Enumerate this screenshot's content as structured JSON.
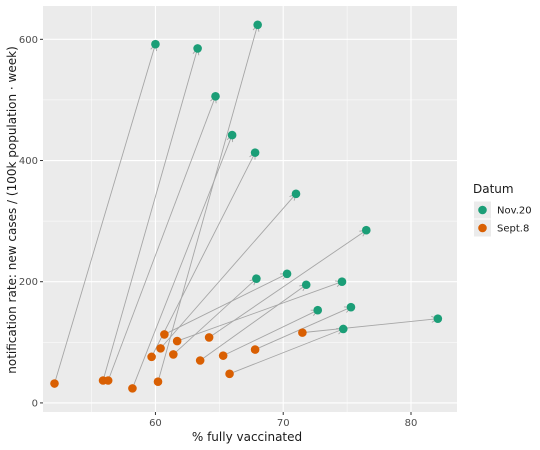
{
  "chart_data": {
    "type": "scatter",
    "xlabel": "% fully vaccinated",
    "ylabel": "notification rate: new cases / (100k population · week)",
    "xlim": [
      51.2,
      83.6
    ],
    "ylim": [
      -15,
      655
    ],
    "x_ticks": [
      60,
      70,
      80
    ],
    "x_minor": [
      55,
      65,
      75
    ],
    "y_ticks": [
      0,
      200,
      400,
      600
    ],
    "y_minor": [
      100,
      300,
      500
    ],
    "legend": {
      "title": "Datum",
      "placement": "right",
      "entries": [
        {
          "label": "Nov.20",
          "color": "#1b9e77"
        },
        {
          "label": "Sept.8",
          "color": "#d95f02"
        }
      ]
    },
    "series": [
      {
        "name": "Sept.8",
        "color": "#d95f02",
        "points": [
          [
            52.1,
            32
          ],
          [
            55.9,
            37
          ],
          [
            56.3,
            37
          ],
          [
            58.2,
            24
          ],
          [
            59.7,
            76
          ],
          [
            60.2,
            35
          ],
          [
            60.4,
            90
          ],
          [
            60.7,
            113
          ],
          [
            61.4,
            80
          ],
          [
            61.7,
            102
          ],
          [
            63.5,
            70
          ],
          [
            64.2,
            108
          ],
          [
            65.3,
            78
          ],
          [
            65.8,
            48
          ],
          [
            67.8,
            88
          ],
          [
            71.5,
            116
          ]
        ]
      },
      {
        "name": "Nov.20",
        "color": "#1b9e77",
        "points": [
          [
            60.0,
            592
          ],
          [
            63.3,
            585
          ],
          [
            64.7,
            506
          ],
          [
            66.0,
            442
          ],
          [
            67.8,
            413
          ],
          [
            68.0,
            624
          ],
          [
            71.0,
            345
          ],
          [
            76.5,
            285
          ],
          [
            67.9,
            205
          ],
          [
            70.3,
            213
          ],
          [
            71.8,
            195
          ],
          [
            74.6,
            200
          ],
          [
            72.7,
            153
          ],
          [
            75.3,
            158
          ],
          [
            74.7,
            122
          ],
          [
            82.1,
            139
          ]
        ]
      }
    ],
    "arrows": [
      {
        "from": [
          52.1,
          32
        ],
        "to": [
          60.0,
          592
        ]
      },
      {
        "from": [
          55.9,
          37
        ],
        "to": [
          63.3,
          585
        ]
      },
      {
        "from": [
          56.3,
          37
        ],
        "to": [
          64.7,
          506
        ]
      },
      {
        "from": [
          58.2,
          24
        ],
        "to": [
          66.0,
          442
        ]
      },
      {
        "from": [
          59.7,
          76
        ],
        "to": [
          67.8,
          413
        ]
      },
      {
        "from": [
          60.2,
          35
        ],
        "to": [
          68.0,
          624
        ]
      },
      {
        "from": [
          60.4,
          90
        ],
        "to": [
          71.0,
          345
        ]
      },
      {
        "from": [
          60.7,
          113
        ],
        "to": [
          70.3,
          213
        ]
      },
      {
        "from": [
          61.4,
          80
        ],
        "to": [
          67.9,
          205
        ]
      },
      {
        "from": [
          61.7,
          102
        ],
        "to": [
          74.6,
          200
        ]
      },
      {
        "from": [
          63.5,
          70
        ],
        "to": [
          71.8,
          195
        ]
      },
      {
        "from": [
          64.2,
          108
        ],
        "to": [
          76.5,
          285
        ]
      },
      {
        "from": [
          65.3,
          78
        ],
        "to": [
          72.7,
          153
        ]
      },
      {
        "from": [
          65.8,
          48
        ],
        "to": [
          74.7,
          122
        ]
      },
      {
        "from": [
          67.8,
          88
        ],
        "to": [
          75.3,
          158
        ]
      },
      {
        "from": [
          71.5,
          116
        ],
        "to": [
          82.1,
          139
        ]
      }
    ],
    "panel_background": "#ebebeb",
    "grid_color": "#ffffff",
    "arrow_color": "#a6a6a6",
    "grid": true
  }
}
